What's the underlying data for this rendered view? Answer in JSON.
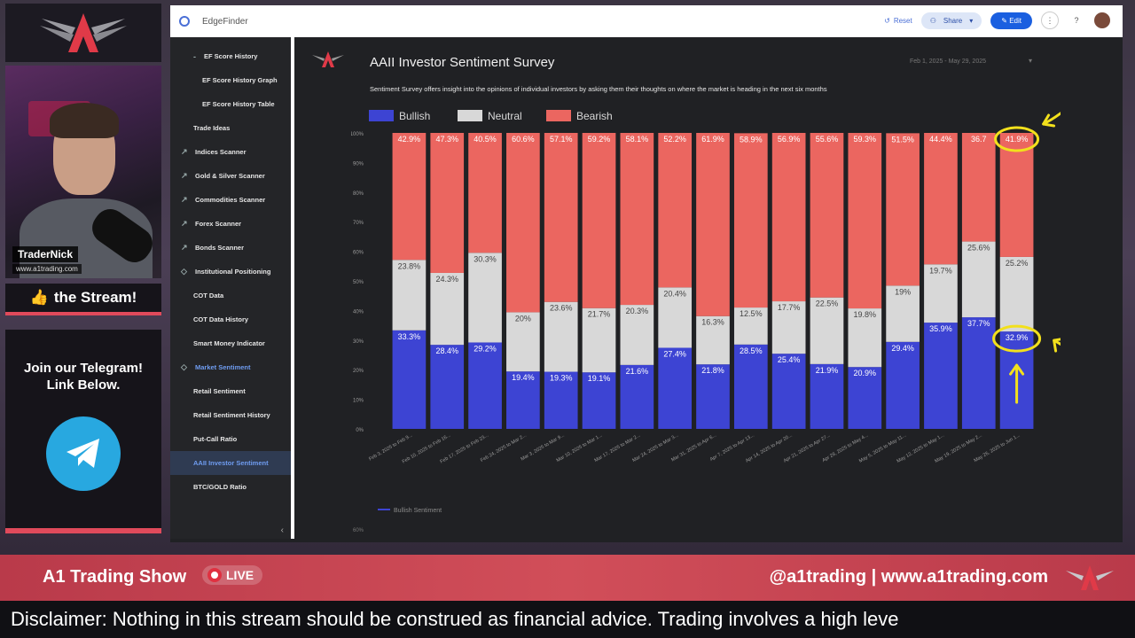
{
  "overlay": {
    "streamer_name": "TraderNick",
    "streamer_url": "www.a1trading.com",
    "like_text": "the Stream!",
    "telegram_line1": "Join our Telegram!",
    "telegram_line2": "Link Below."
  },
  "app": {
    "title": "EdgeFinder",
    "reset_label": "Reset",
    "share_label": "Share",
    "edit_label": "Edit"
  },
  "sidebar": {
    "items": [
      {
        "label": "EF Score History",
        "level": "l2"
      },
      {
        "label": "EF Score History Graph",
        "level": "l3"
      },
      {
        "label": "EF Score History Table",
        "level": "l3"
      },
      {
        "label": "Trade Ideas",
        "level": "l2"
      },
      {
        "label": "Indices Scanner",
        "level": "l1",
        "icon": "trend-icon"
      },
      {
        "label": "Gold & Silver Scanner",
        "level": "l1",
        "icon": "trend-icon"
      },
      {
        "label": "Commodities Scanner",
        "level": "l1",
        "icon": "trend-icon"
      },
      {
        "label": "Forex Scanner",
        "level": "l1",
        "icon": "trend-icon"
      },
      {
        "label": "Bonds Scanner",
        "level": "l1",
        "icon": "trend-icon"
      },
      {
        "label": "Institutional Positioning",
        "level": "l1",
        "icon": "diamond-icon"
      },
      {
        "label": "COT Data",
        "level": "l2"
      },
      {
        "label": "COT Data History",
        "level": "l2"
      },
      {
        "label": "Smart Money Indicator",
        "level": "l2"
      },
      {
        "label": "Market Sentiment",
        "level": "l1",
        "icon": "diamond-icon",
        "highlight": true
      },
      {
        "label": "Retail Sentiment",
        "level": "l2"
      },
      {
        "label": "Retail Sentiment History",
        "level": "l2"
      },
      {
        "label": "Put-Call Ratio",
        "level": "l2"
      },
      {
        "label": "AAII Investor Sentiment",
        "level": "l2",
        "active": true
      },
      {
        "label": "BTC/GOLD Ratio",
        "level": "l2"
      }
    ]
  },
  "report": {
    "title": "AAII Investor Sentiment Survey",
    "date_range": "Feb 1, 2025 - May 29, 2025",
    "subtitle": "Sentiment Survey offers insight into the opinions of individual investors by asking them their thoughts on where the market is heading in the next six months",
    "lower_legend": "Bullish Sentiment",
    "lower_ticks": [
      "60%",
      "50%"
    ]
  },
  "chart_data": {
    "type": "bar",
    "stacked": true,
    "ylim": [
      0,
      100
    ],
    "yticks": [
      "0%",
      "10%",
      "20%",
      "30%",
      "40%",
      "50%",
      "60%",
      "70%",
      "80%",
      "90%",
      "100%"
    ],
    "legend_position": "top-left",
    "categories": [
      "Feb 3, 2025 to Feb 9...",
      "Feb 10, 2025 to Feb 16...",
      "Feb 17, 2025 to Feb 23...",
      "Feb 24, 2025 to Mar 2...",
      "Mar 3, 2025 to Mar 9...",
      "Mar 10, 2025 to Mar 1...",
      "Mar 17, 2025 to Mar 2...",
      "Mar 24, 2025 to Mar 3...",
      "Mar 31, 2025 to Apr 6...",
      "Apr 7, 2025 to Apr 13...",
      "Apr 14, 2025 to Apr 20...",
      "Apr 21, 2025 to Apr 27...",
      "Apr 28, 2025 to May 4...",
      "May 5, 2025 to May 11...",
      "May 12, 2025 to May 1...",
      "May 19, 2025 to May 2...",
      "May 26, 2025 to Jun 1..."
    ],
    "series": [
      {
        "name": "Bullish",
        "color": "#3d44d3",
        "values": [
          33.3,
          28.4,
          29.2,
          19.4,
          19.3,
          19.1,
          21.6,
          27.4,
          21.8,
          28.5,
          25.4,
          21.9,
          20.9,
          29.4,
          35.9,
          37.7,
          32.9
        ],
        "labels": [
          "33.3%",
          "28.4%",
          "29.2%",
          "19.4%",
          "19.3%",
          "19.1%",
          "21.6%",
          "27.4%",
          "21.8%",
          "28.5%",
          "25.4%",
          "21.9%",
          "20.9%",
          "29.4%",
          "35.9%",
          "37.7%",
          "32.9%"
        ]
      },
      {
        "name": "Neutral",
        "color": "#d8d8d8",
        "values": [
          23.8,
          24.3,
          30.3,
          20,
          23.6,
          21.7,
          20.3,
          20.4,
          16.3,
          12.5,
          17.7,
          22.5,
          19.8,
          19,
          19.7,
          25.6,
          25.2
        ],
        "labels": [
          "23.8%",
          "24.3%",
          "30.3%",
          "20%",
          "23.6%",
          "21.7%",
          "20.3%",
          "20.4%",
          "16.3%",
          "12.5%",
          "17.7%",
          "22.5%",
          "19.8%",
          "19%",
          "19.7%",
          "25.6%",
          "25.2%"
        ]
      },
      {
        "name": "Bearish",
        "color": "#eb6660",
        "values": [
          42.9,
          47.3,
          40.5,
          60.6,
          57.1,
          59.2,
          58.1,
          52.2,
          61.9,
          58.9,
          56.9,
          55.6,
          59.3,
          51.5,
          44.4,
          36.7,
          41.9
        ],
        "labels": [
          "42.9%",
          "47.3%",
          "40.5%",
          "60.6%",
          "57.1%",
          "59.2%",
          "58.1%",
          "52.2%",
          "61.9%",
          "58.9%",
          "56.9%",
          "55.6%",
          "59.3%",
          "51.5%",
          "44.4%",
          "36.7",
          "41.9%"
        ]
      }
    ]
  },
  "ticker": {
    "show_name": "A1 Trading Show",
    "live_label": "LIVE",
    "social": "@a1trading | www.a1trading.com",
    "disclaimer": "Disclaimer: Nothing in this stream should be construed as financial advice. Trading involves a high leve"
  },
  "colors": {
    "accent": "#e04a5b",
    "telegram": "#28a8e0",
    "annotation": "#f2e01c"
  }
}
